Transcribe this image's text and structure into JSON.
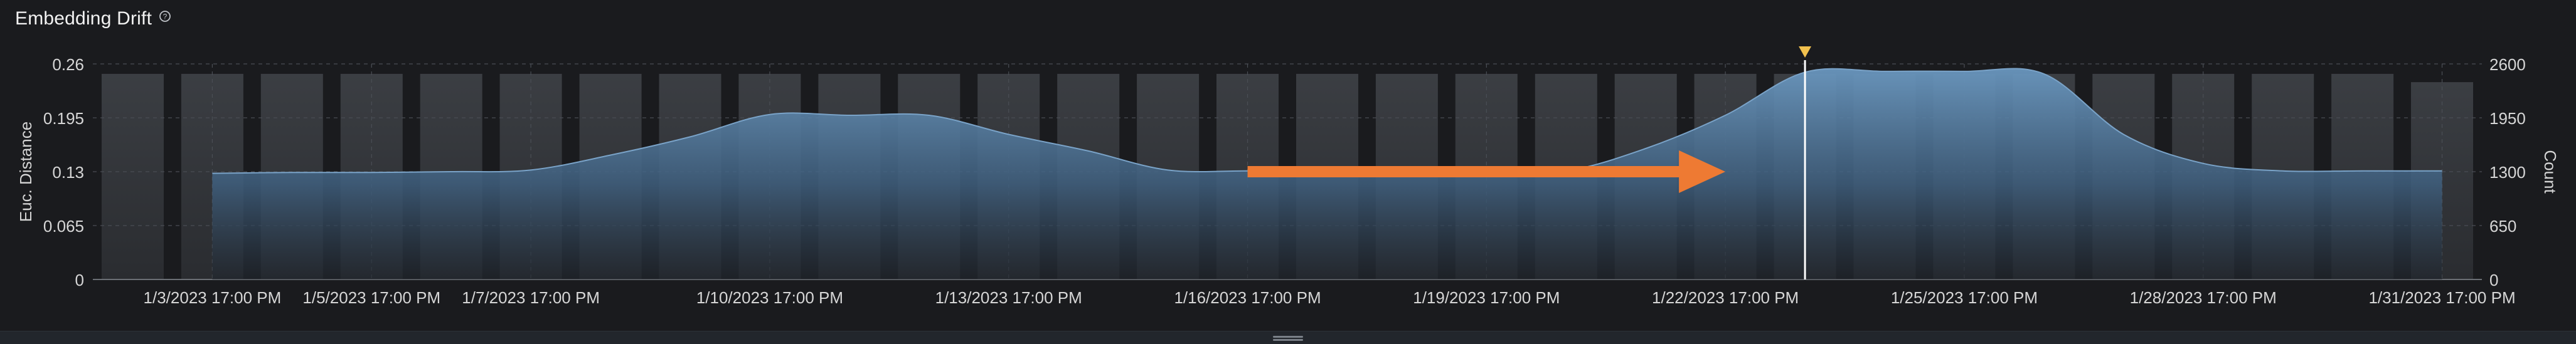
{
  "header": {
    "title": "Embedding Drift",
    "help_icon": "question-circle-icon"
  },
  "colors": {
    "background": "#1a1b1e",
    "area_fill": "#5b86ad",
    "area_line": "#7aa3c8",
    "count_bar": "#3a3d42",
    "arrow": "#ee7a33",
    "selection_line": "#ffffff",
    "marker": "#f2c14e"
  },
  "chart_data": {
    "type": "area",
    "title": "Embedding Drift",
    "ylabel": "Euc. Distance",
    "y2label": "Count",
    "ylim": [
      0,
      0.26
    ],
    "y2lim": [
      0,
      2600
    ],
    "yticks": [
      "0",
      "0.065",
      "0.13",
      "0.195",
      "0.26"
    ],
    "y2ticks": [
      "0",
      "650",
      "1300",
      "1950",
      "2600"
    ],
    "xlim": [
      "1/2/2023",
      "2/1/2023"
    ],
    "xticks": [
      {
        "date": "1/3/2023",
        "label": "1/3/2023 17:00 PM"
      },
      {
        "date": "1/5/2023",
        "label": "1/5/2023 17:00 PM"
      },
      {
        "date": "1/7/2023",
        "label": "1/7/2023 17:00 PM"
      },
      {
        "date": "1/10/2023",
        "label": "1/10/2023 17:00 PM"
      },
      {
        "date": "1/13/2023",
        "label": "1/13/2023 17:00 PM"
      },
      {
        "date": "1/16/2023",
        "label": "1/16/2023 17:00 PM"
      },
      {
        "date": "1/19/2023",
        "label": "1/19/2023 17:00 PM"
      },
      {
        "date": "1/22/2023",
        "label": "1/22/2023 17:00 PM"
      },
      {
        "date": "1/25/2023",
        "label": "1/25/2023 17:00 PM"
      },
      {
        "date": "1/28/2023",
        "label": "1/28/2023 17:00 PM"
      },
      {
        "date": "1/31/2023",
        "label": "1/31/2023 17:00 PM"
      }
    ],
    "grid": true,
    "drift_series": {
      "dates": [
        "1/3/2023",
        "1/4/2023",
        "1/5/2023",
        "1/6/2023",
        "1/7/2023",
        "1/8/2023",
        "1/9/2023",
        "1/10/2023",
        "1/11/2023",
        "1/12/2023",
        "1/13/2023",
        "1/14/2023",
        "1/15/2023",
        "1/16/2023",
        "1/17/2023",
        "1/18/2023",
        "1/19/2023",
        "1/20/2023",
        "1/21/2023",
        "1/22/2023",
        "1/23/2023",
        "1/24/2023",
        "1/25/2023",
        "1/26/2023",
        "1/27/2023",
        "1/28/2023",
        "1/29/2023",
        "1/30/2023",
        "1/31/2023"
      ],
      "values": [
        0.128,
        0.129,
        0.129,
        0.13,
        0.132,
        0.15,
        0.172,
        0.199,
        0.198,
        0.198,
        0.175,
        0.155,
        0.132,
        0.131,
        0.131,
        0.131,
        0.131,
        0.131,
        0.158,
        0.198,
        0.25,
        0.251,
        0.251,
        0.248,
        0.175,
        0.14,
        0.131,
        0.131,
        0.131
      ]
    },
    "count_series": {
      "dates": [
        "1/2/2023",
        "1/3/2023",
        "1/4/2023",
        "1/5/2023",
        "1/6/2023",
        "1/7/2023",
        "1/8/2023",
        "1/9/2023",
        "1/10/2023",
        "1/11/2023",
        "1/12/2023",
        "1/13/2023",
        "1/14/2023",
        "1/15/2023",
        "1/16/2023",
        "1/17/2023",
        "1/18/2023",
        "1/19/2023",
        "1/20/2023",
        "1/21/2023",
        "1/22/2023",
        "1/23/2023",
        "1/24/2023",
        "1/25/2023",
        "1/26/2023",
        "1/27/2023",
        "1/28/2023",
        "1/29/2023",
        "1/30/2023",
        "1/31/2023"
      ],
      "values": [
        2480,
        2480,
        2480,
        2480,
        2480,
        2480,
        2480,
        2480,
        2480,
        2480,
        2480,
        2480,
        2480,
        2480,
        2480,
        2480,
        2480,
        2480,
        2480,
        2480,
        2480,
        2480,
        2480,
        2480,
        2480,
        2480,
        2480,
        2480,
        2480,
        2380
      ]
    },
    "selected_date": "1/23/2023",
    "annotation": {
      "type": "arrow",
      "from_date": "1/16/2023",
      "to_date": "1/22/2023",
      "y": 0.13
    }
  }
}
